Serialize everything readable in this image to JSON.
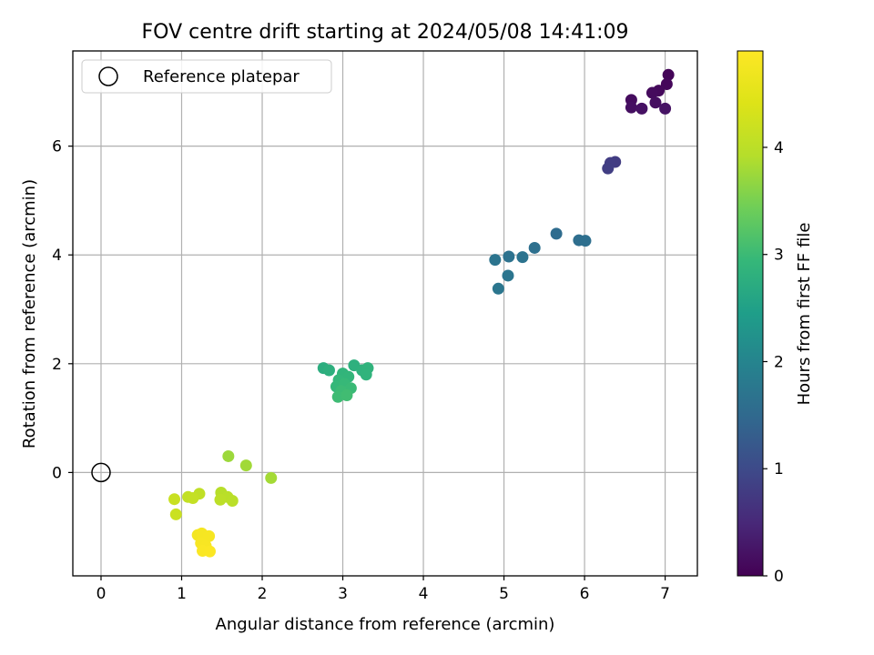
{
  "chart_data": {
    "type": "scatter",
    "title": "FOV centre drift starting at 2024/05/08 14:41:09",
    "xlabel": "Angular distance from reference (arcmin)",
    "ylabel": "Rotation from reference (arcmin)",
    "xlim": [
      -0.35,
      7.4
    ],
    "ylim": [
      -1.9,
      7.75
    ],
    "xticks": [
      0,
      1,
      2,
      3,
      4,
      5,
      6,
      7
    ],
    "yticks": [
      0,
      2,
      4,
      6
    ],
    "grid": true,
    "legend": {
      "position": "top-left",
      "entries": [
        "Reference platepar"
      ]
    },
    "reference_point": {
      "x": 0,
      "y": 0,
      "label": "Reference platepar"
    },
    "colorbar": {
      "label": "Hours from first FF file",
      "range": [
        0,
        4.9
      ],
      "ticks": [
        0,
        1,
        2,
        3,
        4
      ],
      "colormap": "viridis"
    },
    "points": [
      {
        "x": 7.04,
        "y": 7.31,
        "t": 0.05
      },
      {
        "x": 7.02,
        "y": 7.14,
        "t": 0.08
      },
      {
        "x": 6.92,
        "y": 7.02,
        "t": 0.1
      },
      {
        "x": 6.84,
        "y": 6.98,
        "t": 0.12
      },
      {
        "x": 6.58,
        "y": 6.85,
        "t": 0.14
      },
      {
        "x": 6.88,
        "y": 6.8,
        "t": 0.16
      },
      {
        "x": 6.58,
        "y": 6.71,
        "t": 0.18
      },
      {
        "x": 6.71,
        "y": 6.69,
        "t": 0.2
      },
      {
        "x": 7.0,
        "y": 6.69,
        "t": 0.22
      },
      {
        "x": 6.38,
        "y": 5.71,
        "t": 0.78
      },
      {
        "x": 6.32,
        "y": 5.69,
        "t": 0.8
      },
      {
        "x": 6.29,
        "y": 5.59,
        "t": 0.82
      },
      {
        "x": 5.65,
        "y": 4.39,
        "t": 1.55
      },
      {
        "x": 5.93,
        "y": 4.27,
        "t": 1.58
      },
      {
        "x": 6.01,
        "y": 4.26,
        "t": 1.6
      },
      {
        "x": 5.38,
        "y": 4.13,
        "t": 1.62
      },
      {
        "x": 5.06,
        "y": 3.97,
        "t": 1.66
      },
      {
        "x": 5.23,
        "y": 3.96,
        "t": 1.68
      },
      {
        "x": 4.89,
        "y": 3.91,
        "t": 1.7
      },
      {
        "x": 5.05,
        "y": 3.62,
        "t": 1.72
      },
      {
        "x": 4.93,
        "y": 3.38,
        "t": 1.74
      },
      {
        "x": 2.76,
        "y": 1.92,
        "t": 2.75
      },
      {
        "x": 2.83,
        "y": 1.88,
        "t": 2.78
      },
      {
        "x": 3.14,
        "y": 1.97,
        "t": 2.8
      },
      {
        "x": 3.24,
        "y": 1.88,
        "t": 2.82
      },
      {
        "x": 3.31,
        "y": 1.92,
        "t": 2.84
      },
      {
        "x": 3.29,
        "y": 1.8,
        "t": 2.86
      },
      {
        "x": 3.0,
        "y": 1.82,
        "t": 2.88
      },
      {
        "x": 3.07,
        "y": 1.76,
        "t": 2.9
      },
      {
        "x": 2.95,
        "y": 1.7,
        "t": 2.92
      },
      {
        "x": 2.92,
        "y": 1.58,
        "t": 2.94
      },
      {
        "x": 3.02,
        "y": 1.63,
        "t": 2.96
      },
      {
        "x": 3.1,
        "y": 1.55,
        "t": 2.98
      },
      {
        "x": 2.98,
        "y": 1.5,
        "t": 3.0
      },
      {
        "x": 2.94,
        "y": 1.39,
        "t": 3.02
      },
      {
        "x": 3.05,
        "y": 1.42,
        "t": 3.04
      },
      {
        "x": 1.58,
        "y": 0.3,
        "t": 3.75
      },
      {
        "x": 1.8,
        "y": 0.13,
        "t": 3.78
      },
      {
        "x": 2.11,
        "y": -0.1,
        "t": 3.8
      },
      {
        "x": 1.49,
        "y": -0.37,
        "t": 3.95
      },
      {
        "x": 1.57,
        "y": -0.45,
        "t": 3.97
      },
      {
        "x": 1.63,
        "y": -0.52,
        "t": 3.98
      },
      {
        "x": 1.48,
        "y": -0.5,
        "t": 4.0
      },
      {
        "x": 1.22,
        "y": -0.39,
        "t": 4.05
      },
      {
        "x": 1.08,
        "y": -0.45,
        "t": 4.08
      },
      {
        "x": 1.14,
        "y": -0.47,
        "t": 4.1
      },
      {
        "x": 0.91,
        "y": -0.49,
        "t": 4.15
      },
      {
        "x": 0.93,
        "y": -0.77,
        "t": 4.18
      },
      {
        "x": 1.2,
        "y": -1.15,
        "t": 4.75
      },
      {
        "x": 1.25,
        "y": -1.12,
        "t": 4.77
      },
      {
        "x": 1.34,
        "y": -1.17,
        "t": 4.79
      },
      {
        "x": 1.24,
        "y": -1.3,
        "t": 4.81
      },
      {
        "x": 1.3,
        "y": -1.35,
        "t": 4.83
      },
      {
        "x": 1.26,
        "y": -1.44,
        "t": 4.85
      },
      {
        "x": 1.35,
        "y": -1.45,
        "t": 4.87
      }
    ]
  }
}
